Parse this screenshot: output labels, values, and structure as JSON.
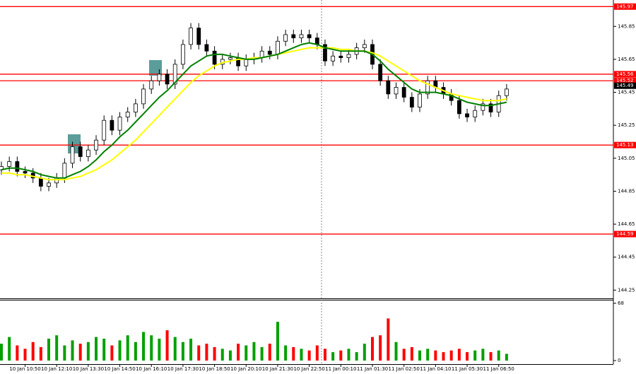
{
  "chart_data": {
    "type": "candlestick",
    "categories": [
      null,
      null,
      null,
      "10 Jan 10:50",
      null,
      null,
      null,
      "10 Jan 12:10",
      null,
      null,
      null,
      "10 Jan 13:30",
      null,
      null,
      null,
      "10 Jan 14:50",
      null,
      null,
      null,
      "10 Jan 16:10",
      null,
      null,
      null,
      "10 Jan 17:30",
      null,
      null,
      null,
      "10 Jan 18:50",
      null,
      null,
      null,
      "10 Jan 20:10",
      null,
      null,
      null,
      "10 Jan 21:30",
      null,
      null,
      null,
      "10 Jan 22:50",
      null,
      null,
      null,
      "11 Jan 00:10",
      null,
      null,
      null,
      "11 Jan 01:30",
      null,
      null,
      null,
      "11 Jan 02:50",
      null,
      null,
      null,
      "11 Jan 04:10",
      null,
      null,
      null,
      "11 Jan 05:30",
      null,
      null,
      null,
      "11 Jan 06:50",
      null
    ],
    "open": [
      144.98,
      145.0,
      145.03,
      144.97,
      144.96,
      144.93,
      144.88,
      144.9,
      144.93,
      145.02,
      145.12,
      145.06,
      145.1,
      145.16,
      145.28,
      145.22,
      145.3,
      145.33,
      145.38,
      145.47,
      145.52,
      145.56,
      145.5,
      145.62,
      145.74,
      145.84,
      145.74,
      145.7,
      145.62,
      145.65,
      145.66,
      145.61,
      145.65,
      145.66,
      145.7,
      145.68,
      145.76,
      145.8,
      145.78,
      145.8,
      145.78,
      145.74,
      145.64,
      145.67,
      145.66,
      145.68,
      145.72,
      145.74,
      145.62,
      145.52,
      145.44,
      145.48,
      145.42,
      145.36,
      145.44,
      145.52,
      145.48,
      145.44,
      145.4,
      145.32,
      145.3,
      145.34,
      145.38,
      145.33,
      145.43
    ],
    "high": [
      145.03,
      145.06,
      145.06,
      145.0,
      144.99,
      144.96,
      144.93,
      144.96,
      145.05,
      145.15,
      145.15,
      145.13,
      145.19,
      145.31,
      145.31,
      145.33,
      145.36,
      145.41,
      145.5,
      145.55,
      145.59,
      145.59,
      145.65,
      145.77,
      145.87,
      145.87,
      145.77,
      145.73,
      145.68,
      145.69,
      145.69,
      145.68,
      145.69,
      145.73,
      145.73,
      145.79,
      145.83,
      145.83,
      145.83,
      145.83,
      145.81,
      145.77,
      145.7,
      145.7,
      145.71,
      145.75,
      145.77,
      145.77,
      145.65,
      145.55,
      145.51,
      145.51,
      145.45,
      145.47,
      145.55,
      145.55,
      145.51,
      145.47,
      145.43,
      145.35,
      145.37,
      145.41,
      145.41,
      145.46,
      145.5
    ],
    "low": [
      144.95,
      144.97,
      144.94,
      144.93,
      144.9,
      144.85,
      144.85,
      144.87,
      144.9,
      144.99,
      145.03,
      145.03,
      145.07,
      145.13,
      145.19,
      145.19,
      145.27,
      145.3,
      145.35,
      145.44,
      145.49,
      145.47,
      145.47,
      145.59,
      145.71,
      145.71,
      145.67,
      145.59,
      145.59,
      145.62,
      145.58,
      145.58,
      145.62,
      145.63,
      145.65,
      145.65,
      145.73,
      145.75,
      145.75,
      145.75,
      145.71,
      145.61,
      145.61,
      145.63,
      145.63,
      145.65,
      145.69,
      145.59,
      145.49,
      145.41,
      145.41,
      145.39,
      145.33,
      145.33,
      145.41,
      145.45,
      145.41,
      145.37,
      145.29,
      145.27,
      145.27,
      145.31,
      145.3,
      145.3,
      145.4
    ],
    "close": [
      145.0,
      145.03,
      144.97,
      144.96,
      144.93,
      144.88,
      144.9,
      144.93,
      145.02,
      145.12,
      145.06,
      145.1,
      145.16,
      145.28,
      145.22,
      145.3,
      145.33,
      145.38,
      145.47,
      145.52,
      145.56,
      145.5,
      145.62,
      145.74,
      145.84,
      145.74,
      145.7,
      145.62,
      145.65,
      145.66,
      145.61,
      145.65,
      145.66,
      145.7,
      145.68,
      145.76,
      145.8,
      145.78,
      145.8,
      145.78,
      145.74,
      145.64,
      145.67,
      145.66,
      145.68,
      145.72,
      145.74,
      145.62,
      145.52,
      145.44,
      145.48,
      145.42,
      145.36,
      145.44,
      145.52,
      145.48,
      145.44,
      145.4,
      145.32,
      145.3,
      145.34,
      145.38,
      145.33,
      145.43,
      145.47
    ],
    "color": "#000000",
    "ma": [
      {
        "color": "#ffff00",
        "values": [
          144.96,
          144.96,
          144.95,
          144.95,
          144.94,
          144.93,
          144.92,
          144.92,
          144.92,
          144.93,
          144.94,
          144.96,
          144.98,
          145.01,
          145.04,
          145.08,
          145.12,
          145.16,
          145.21,
          145.26,
          145.31,
          145.36,
          145.41,
          145.46,
          145.51,
          145.55,
          145.58,
          145.61,
          145.63,
          145.64,
          145.65,
          145.65,
          145.66,
          145.66,
          145.67,
          145.68,
          145.69,
          145.7,
          145.71,
          145.72,
          145.72,
          145.72,
          145.72,
          145.71,
          145.71,
          145.7,
          145.7,
          145.69,
          145.67,
          145.64,
          145.61,
          145.58,
          145.55,
          145.52,
          145.5,
          145.48,
          145.46,
          145.44,
          145.43,
          145.42,
          145.41,
          145.4,
          145.4,
          145.4,
          145.41
        ]
      },
      {
        "color": "#008000",
        "values": [
          144.98,
          144.99,
          144.99,
          144.98,
          144.97,
          144.95,
          144.94,
          144.93,
          144.93,
          144.95,
          144.97,
          145.0,
          145.04,
          145.09,
          145.13,
          145.18,
          145.22,
          145.27,
          145.32,
          145.37,
          145.42,
          145.46,
          145.51,
          145.56,
          145.61,
          145.64,
          145.67,
          145.68,
          145.68,
          145.67,
          145.66,
          145.65,
          145.65,
          145.66,
          145.67,
          145.68,
          145.7,
          145.72,
          145.74,
          145.75,
          145.74,
          145.72,
          145.71,
          145.7,
          145.7,
          145.7,
          145.7,
          145.68,
          145.64,
          145.59,
          145.55,
          145.51,
          145.47,
          145.45,
          145.45,
          145.45,
          145.44,
          145.43,
          145.41,
          145.39,
          145.38,
          145.37,
          145.37,
          145.38,
          145.39
        ]
      }
    ],
    "ylim": [
      144.2,
      146.01
    ],
    "yticks": [
      145.85,
      145.65,
      145.45,
      145.25,
      145.05,
      144.85,
      144.65,
      144.45,
      144.25
    ],
    "levels": [
      {
        "value": 145.97,
        "color": "#ff0000"
      },
      {
        "value": 145.56,
        "color": "#ff0000"
      },
      {
        "value": 145.52,
        "color": "#ff0000"
      },
      {
        "value": 145.13,
        "color": "#ff0000"
      },
      {
        "value": 144.59,
        "color": "#ff0000"
      },
      {
        "value": 145.49,
        "color": "#000000"
      }
    ],
    "volume": {
      "values": [
        20,
        28,
        18,
        14,
        22,
        16,
        26,
        30,
        18,
        24,
        20,
        22,
        28,
        26,
        18,
        24,
        30,
        22,
        34,
        30,
        26,
        36,
        28,
        22,
        26,
        18,
        20,
        16,
        14,
        12,
        20,
        18,
        22,
        16,
        20,
        46,
        18,
        16,
        14,
        12,
        18,
        14,
        10,
        12,
        14,
        10,
        20,
        28,
        30,
        50,
        22,
        14,
        16,
        12,
        14,
        12,
        10,
        12,
        14,
        10,
        12,
        14,
        10,
        12,
        8
      ],
      "up_color": "#00a000",
      "down_color": "#ff0000",
      "y2lim": [
        0,
        68
      ],
      "y2ticks": [
        68,
        0
      ]
    }
  }
}
